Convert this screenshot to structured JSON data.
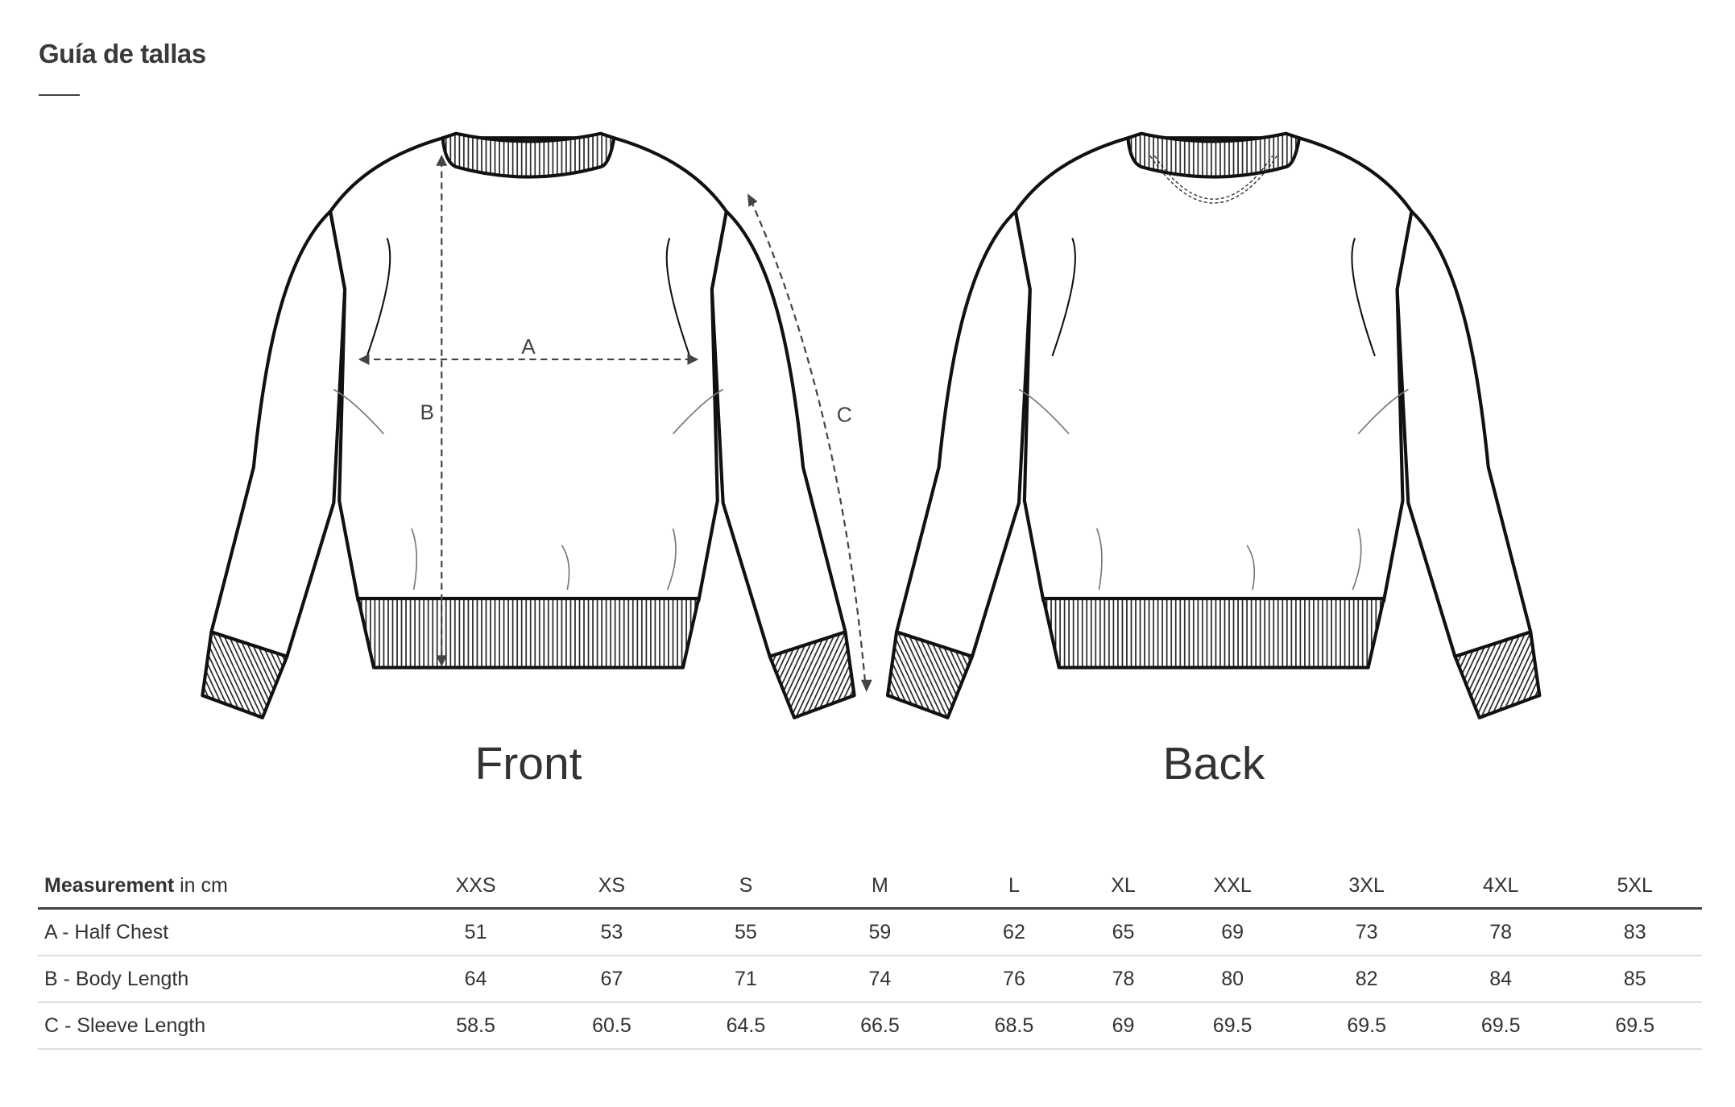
{
  "title": "Guía de tallas",
  "views": {
    "front": "Front",
    "back": "Back"
  },
  "markers": {
    "a": "A",
    "b": "B",
    "c": "C"
  },
  "table": {
    "header_bold": "Measurement",
    "header_unit": "in cm",
    "sizes": [
      "XXS",
      "XS",
      "S",
      "M",
      "L",
      "XL",
      "XXL",
      "3XL",
      "4XL",
      "5XL"
    ],
    "rows": [
      {
        "label": "A - Half Chest",
        "values": [
          "51",
          "53",
          "55",
          "59",
          "62",
          "65",
          "69",
          "73",
          "78",
          "83"
        ]
      },
      {
        "label": "B - Body Length",
        "values": [
          "64",
          "67",
          "71",
          "74",
          "76",
          "78",
          "80",
          "82",
          "84",
          "85"
        ]
      },
      {
        "label": "C - Sleeve Length",
        "values": [
          "58.5",
          "60.5",
          "64.5",
          "66.5",
          "68.5",
          "69",
          "69.5",
          "69.5",
          "69.5",
          "69.5"
        ]
      }
    ]
  },
  "colors": {
    "text": "#333333",
    "outline": "#111111",
    "rule": "#444444"
  }
}
